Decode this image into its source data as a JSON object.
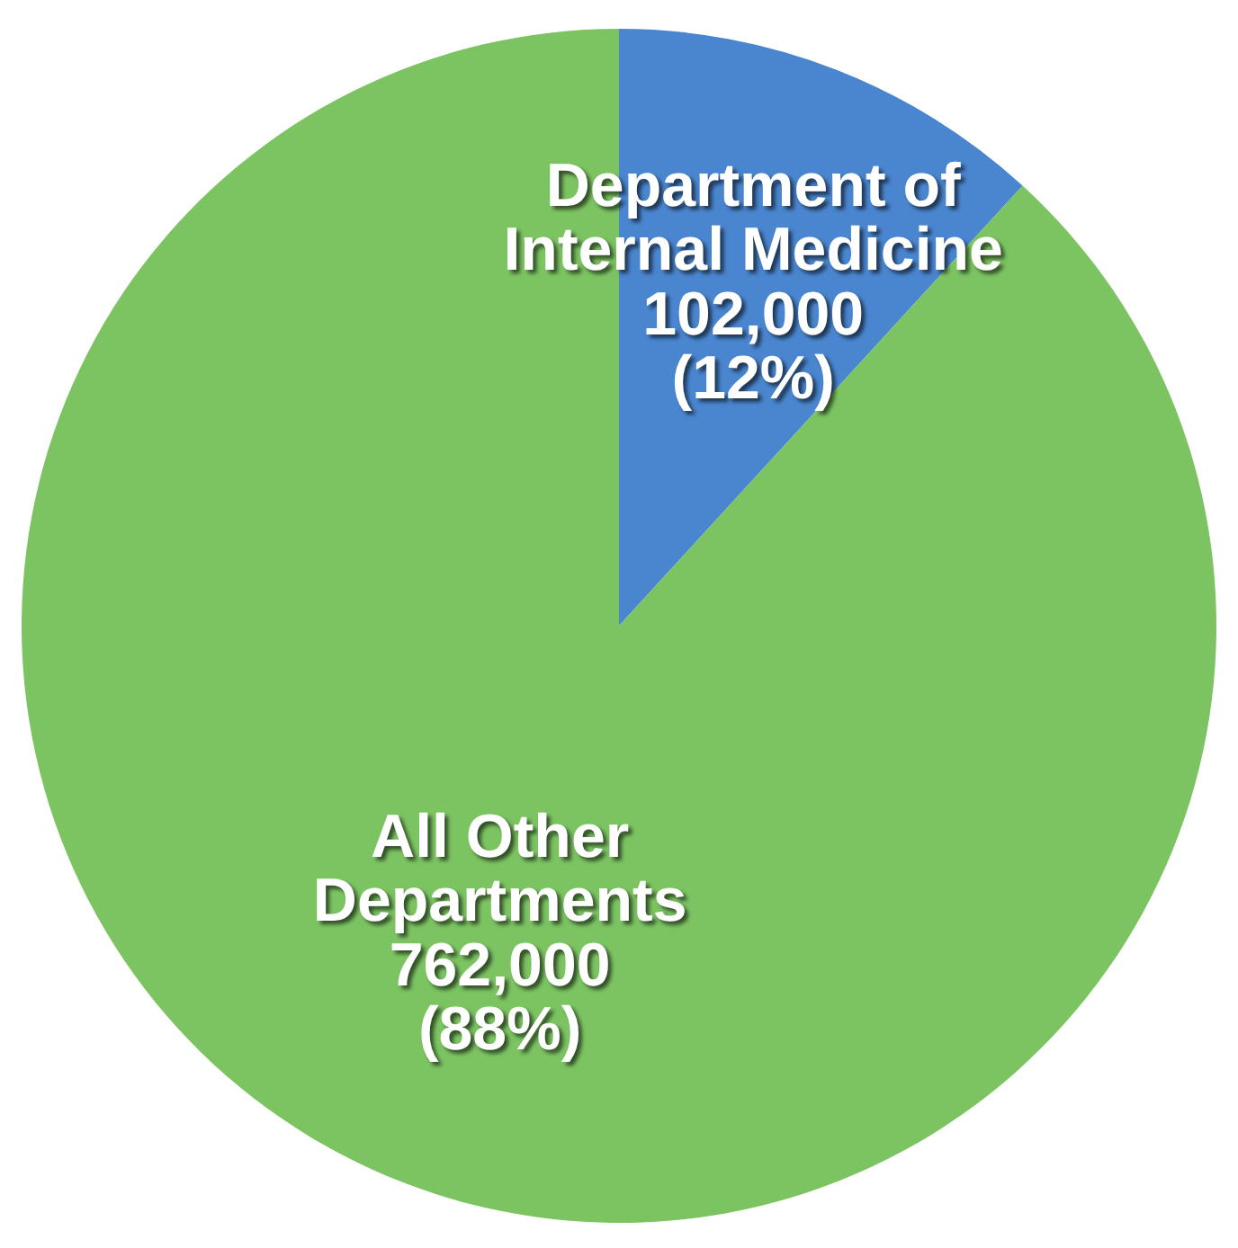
{
  "chart_data": {
    "type": "pie",
    "categories": [
      "Department of Internal Medicine",
      "All Other Departments"
    ],
    "values": [
      102000,
      762000
    ],
    "colors": [
      "#4a86d0",
      "#7cc462"
    ],
    "value_labels": [
      "102,000\n(12%)",
      "762,000\n(88%)"
    ]
  }
}
